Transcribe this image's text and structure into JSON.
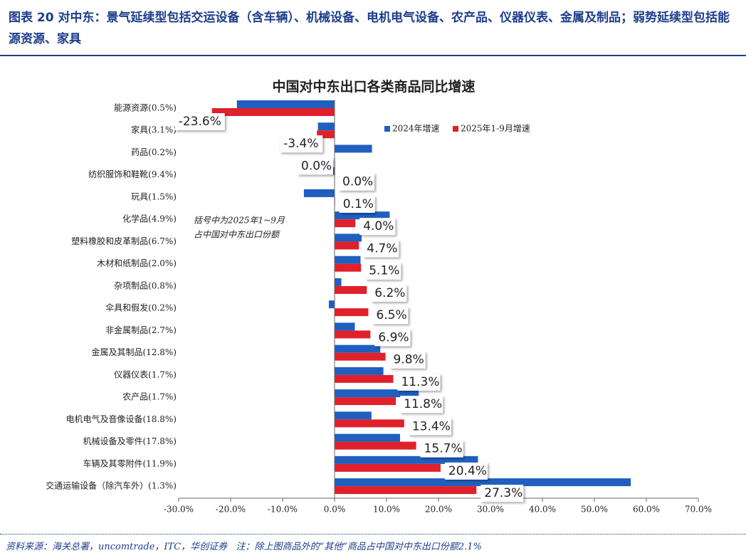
{
  "header": {
    "title": "图表 20   对中东：景气延续型包括交运设备（含车辆）、机械设备、电机电气设备、农产品、仪器仪表、金属及制品；弱势延续型包括能源资源、家具"
  },
  "chart_data": {
    "type": "bar",
    "orientation": "horizontal",
    "title": "中国对中东出口各类商品同比增速",
    "categories": [
      "能源资源(0.5%)",
      "家具(3.1%)",
      "药品(0.2%)",
      "纺织服饰和鞋靴(9.4%)",
      "玩具(1.5%)",
      "化学品(4.9%)",
      "塑料橡胶和皮革制品(6.7%)",
      "木材和纸制品(2.0%)",
      "杂项制品(0.8%)",
      "伞具和假发(0.2%)",
      "非金属制品(2.7%)",
      "金属及其制品(12.8%)",
      "仪器仪表(1.7%)",
      "农产品(1.7%)",
      "电机电气及音像设备(18.8%)",
      "机械设备及零件(17.8%)",
      "车辆及其零附件(11.9%)",
      "交通运输设备（除汽车外）(1.3%)"
    ],
    "series": [
      {
        "name": "2024年增速",
        "color": "#1f5fbf",
        "values": [
          -18.8,
          -3.2,
          7.2,
          -1.5,
          -5.9,
          10.6,
          5.2,
          5.0,
          1.3,
          -1.1,
          3.9,
          8.8,
          9.4,
          16.2,
          7.1,
          12.6,
          27.6,
          57.0
        ]
      },
      {
        "name": "2025年1-9月增速",
        "color": "#e0202a",
        "values": [
          -23.6,
          -3.4,
          0.0,
          0.0,
          0.1,
          4.0,
          4.7,
          5.1,
          6.2,
          6.5,
          6.9,
          9.8,
          11.3,
          11.8,
          13.4,
          15.7,
          20.4,
          27.3
        ],
        "value_labels": [
          "-23.6%",
          "-3.4%",
          "0.0%",
          "0.0%",
          "0.1%",
          "4.0%",
          "4.7%",
          "5.1%",
          "6.2%",
          "6.5%",
          "6.9%",
          "9.8%",
          "11.3%",
          "11.8%",
          "13.4%",
          "15.7%",
          "20.4%",
          "27.3%"
        ]
      }
    ],
    "xlim": [
      -30,
      70
    ],
    "xticks": [
      {
        "value": -30,
        "label": "-30.0%"
      },
      {
        "value": -20,
        "label": "-20.0%"
      },
      {
        "value": -10,
        "label": "-10.0%"
      },
      {
        "value": 0,
        "label": "0.0%"
      },
      {
        "value": 10,
        "label": "10.0%"
      },
      {
        "value": 20,
        "label": "20.0%"
      },
      {
        "value": 30,
        "label": "30.0%"
      },
      {
        "value": 40,
        "label": "40.0%"
      },
      {
        "value": 50,
        "label": "50.0%"
      },
      {
        "value": 60,
        "label": "60.0%"
      },
      {
        "value": 70,
        "label": "70.0%"
      }
    ],
    "annotation": [
      "括号中为2025年1~9月",
      "占中国对中东出口份额"
    ],
    "legend": "top-right"
  },
  "footer": {
    "source": "资料来源：海关总署，uncomtrade，ITC，华创证券",
    "note": "注：除上图商品外的“其他”商品占中国对中东出口份额2.1%"
  }
}
